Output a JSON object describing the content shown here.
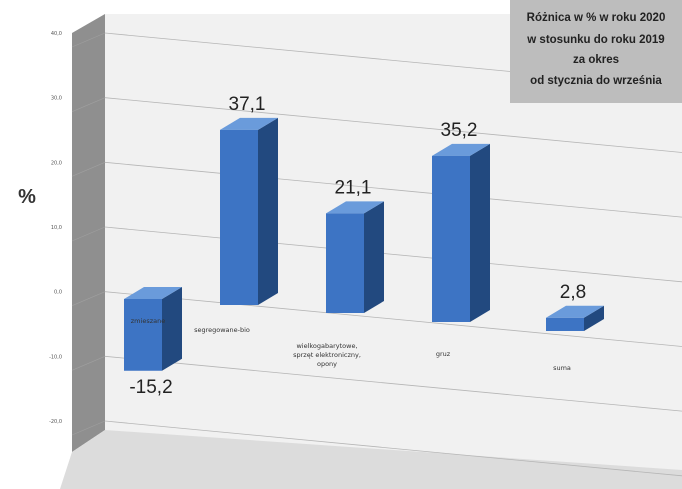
{
  "chart_data": {
    "type": "bar",
    "title_lines": [
      "Różnica w % w roku 2020",
      "w stosunku do roku 2019",
      "za okres",
      "od stycznia do września"
    ],
    "ylabel": "%",
    "ylim": [
      -20,
      40
    ],
    "y_ticks": [
      "40,0",
      "30,0",
      "20,0",
      "10,0",
      "0,0",
      "-10,0",
      "-20,0"
    ],
    "grid": true,
    "categories": [
      "zmieszane",
      "segregowane-bio",
      "wielkogabarytowe, sprzęt elektroniczny, opony",
      "gruz",
      "suma"
    ],
    "values": [
      -15.2,
      37.1,
      21.1,
      35.2,
      2.8
    ],
    "value_labels": [
      "-15,2",
      "37,1",
      "21,1",
      "35,2",
      "2,8"
    ],
    "colors": {
      "bar_front": "#3d74c4",
      "bar_side": "#22497f",
      "bar_top": "#6a9bdb",
      "wall": "#f1f1f1",
      "side_wall": "#8f8f8f",
      "floor": "#dcdcdc",
      "title_box": "#bdbdbd"
    }
  }
}
